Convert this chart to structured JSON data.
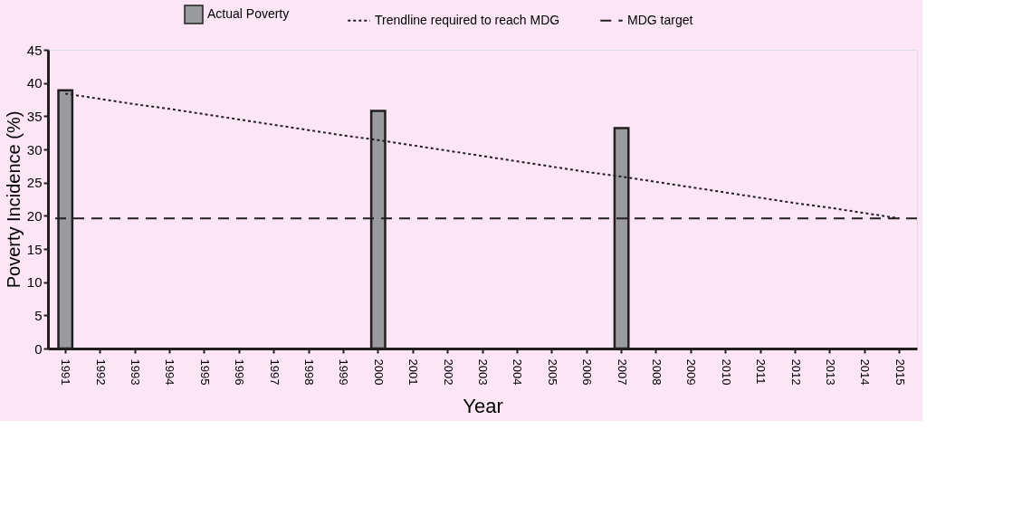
{
  "chart_data": {
    "type": "bar",
    "categories": [
      "1991",
      "1992",
      "1993",
      "1994",
      "1995",
      "1996",
      "1997",
      "1998",
      "1999",
      "2000",
      "2001",
      "2002",
      "2003",
      "2004",
      "2005",
      "2006",
      "2007",
      "2008",
      "2009",
      "2010",
      "2011",
      "2012",
      "2013",
      "2014",
      "2015"
    ],
    "series": [
      {
        "name": "Actual Poverty",
        "color": "#9a9b9e",
        "values": [
          38.9,
          null,
          null,
          null,
          null,
          null,
          null,
          null,
          null,
          35.8,
          null,
          null,
          null,
          null,
          null,
          null,
          33.2,
          null,
          null,
          null,
          null,
          null,
          null,
          null,
          null
        ]
      },
      {
        "name": "Trendline required to reach MDG",
        "type": "line",
        "color": "#231f20",
        "line_style": "dotted",
        "values": [
          38.4,
          37.6,
          36.8,
          36.1,
          35.3,
          34.5,
          33.7,
          32.9,
          32.1,
          31.4,
          30.6,
          29.8,
          29.0,
          28.2,
          27.4,
          26.6,
          25.9,
          25.1,
          24.3,
          23.5,
          22.7,
          21.9,
          21.2,
          20.4,
          19.6
        ]
      }
    ],
    "ref_lines": [
      {
        "axis": "y",
        "value": 19.6,
        "label": "MDG target",
        "color": "#231f20",
        "line_style": "dashed"
      }
    ],
    "xlabel": "Year",
    "ylabel": "Poverty Incidence (%)",
    "ylim": [
      0,
      45
    ],
    "yticks": [
      0,
      5,
      10,
      15,
      20,
      25,
      30,
      35,
      40,
      45
    ],
    "legend": "top",
    "grid": false
  }
}
